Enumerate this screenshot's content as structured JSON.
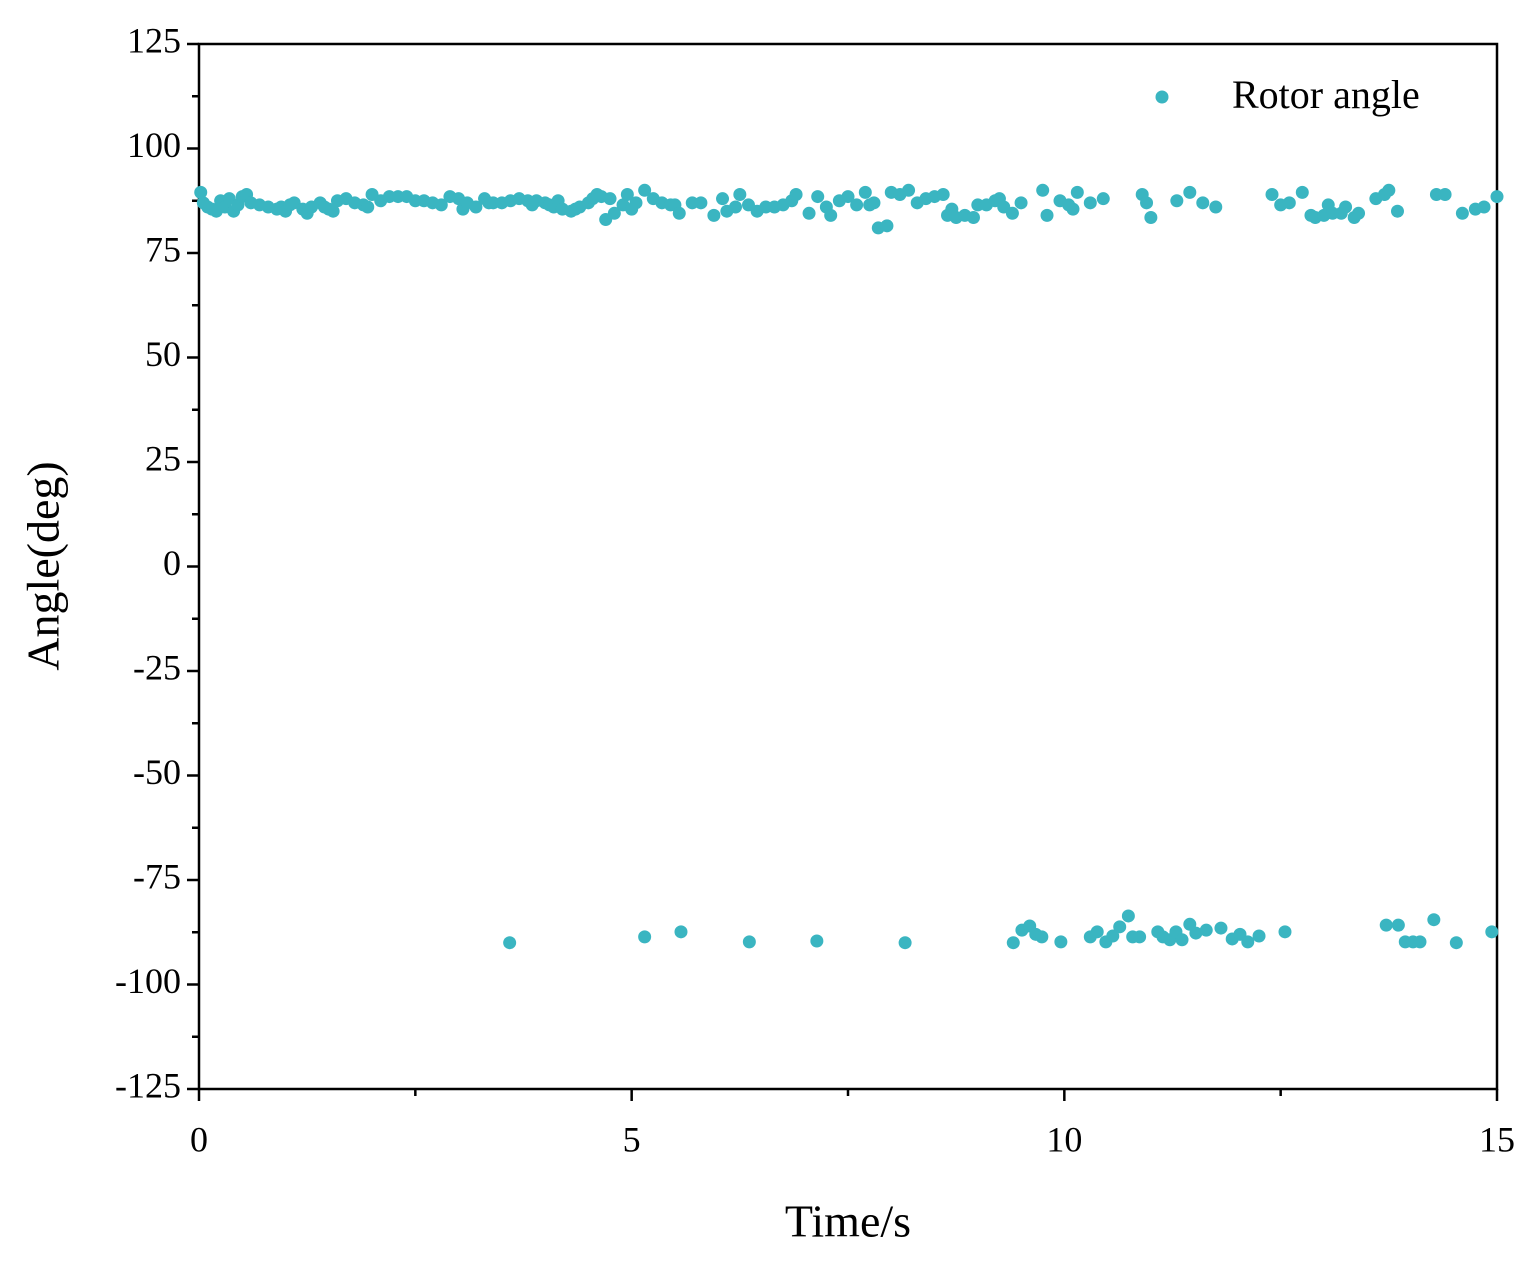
{
  "chart_data": {
    "type": "scatter",
    "xlabel": "Time/s",
    "ylabel": "Angle(deg)",
    "xlim": [
      0,
      15
    ],
    "xticks": [
      0,
      5,
      10,
      15
    ],
    "ylim": [
      -125,
      125
    ],
    "yticks": [
      -125,
      -100,
      -75,
      -50,
      -25,
      0,
      25,
      50,
      75,
      100,
      125
    ],
    "legend": "upper right",
    "series": [
      {
        "name": "Rotor angle",
        "color": "#3ab5c1",
        "x": [
          0.02,
          0.05,
          0.1,
          0.15,
          0.2,
          0.25,
          0.3,
          0.35,
          0.4,
          0.45,
          0.5,
          0.55,
          0.6,
          0.7,
          0.8,
          0.9,
          0.95,
          1.0,
          1.05,
          1.1,
          1.2,
          1.25,
          1.3,
          1.4,
          1.45,
          1.5,
          1.55,
          1.6,
          1.7,
          1.8,
          1.9,
          1.95,
          2.0,
          2.1,
          2.2,
          2.3,
          2.4,
          2.5,
          2.6,
          2.7,
          2.8,
          2.9,
          3.0,
          3.05,
          3.1,
          3.2,
          3.3,
          3.35,
          3.4,
          3.5,
          3.6,
          3.7,
          3.8,
          3.85,
          3.9,
          4.0,
          4.05,
          4.1,
          4.15,
          4.2,
          4.3,
          4.35,
          4.4,
          4.5,
          4.55,
          4.6,
          4.65,
          4.7,
          4.75,
          4.8,
          4.9,
          4.95,
          5.0,
          5.05,
          5.15,
          5.25,
          5.35,
          5.45,
          5.5,
          5.55,
          5.7,
          5.8,
          5.95,
          6.05,
          6.1,
          6.2,
          6.25,
          6.35,
          6.45,
          6.55,
          6.65,
          6.75,
          6.85,
          6.9,
          7.05,
          7.15,
          7.25,
          7.3,
          7.4,
          7.5,
          7.6,
          7.7,
          7.75,
          7.8,
          7.85,
          7.95,
          8.0,
          8.1,
          8.2,
          8.3,
          8.4,
          8.5,
          8.6,
          8.65,
          8.7,
          8.75,
          8.85,
          8.95,
          9.0,
          9.1,
          9.2,
          9.25,
          9.3,
          9.4,
          9.5,
          9.75,
          9.8,
          9.95,
          10.05,
          10.1,
          10.15,
          10.3,
          10.45,
          10.9,
          10.95,
          11.0,
          11.3,
          11.45,
          11.6,
          11.75,
          12.4,
          12.5,
          12.6,
          12.75,
          12.85,
          12.9,
          13.0,
          13.05,
          13.1,
          13.2,
          13.25,
          13.35,
          13.4,
          13.6,
          13.7,
          13.75,
          13.85,
          14.3,
          14.4,
          14.6,
          14.75,
          14.85,
          15.0,
          3.59,
          5.15,
          5.57,
          6.36,
          7.14,
          8.16,
          9.41,
          9.51,
          9.6,
          9.67,
          9.74,
          9.96,
          10.3,
          10.38,
          10.48,
          10.56,
          10.64,
          10.74,
          10.79,
          10.87,
          11.08,
          11.14,
          11.22,
          11.29,
          11.36,
          11.45,
          11.52,
          11.64,
          11.81,
          11.94,
          12.03,
          12.12,
          12.25,
          12.55,
          13.72,
          13.86,
          13.94,
          14.03,
          14.11,
          14.27,
          14.53,
          14.94
        ],
        "values": [
          89.5,
          87,
          86,
          85.5,
          85,
          87.5,
          86,
          88,
          85,
          86.5,
          88.5,
          89,
          87,
          86.5,
          86,
          85.5,
          86,
          85,
          86.5,
          87,
          85.5,
          84.5,
          86,
          87,
          86,
          85.5,
          85,
          87.5,
          88,
          87,
          86.5,
          86,
          89,
          87.5,
          88.5,
          88.5,
          88.5,
          87.5,
          87.5,
          87,
          86.5,
          88.5,
          88,
          85.5,
          87,
          86,
          88,
          87,
          87,
          87,
          87.5,
          88,
          87.5,
          86.5,
          87.5,
          87,
          86.5,
          86,
          87.5,
          85.5,
          85,
          85.5,
          86,
          87,
          88,
          89,
          88.5,
          83,
          88,
          84.5,
          86.5,
          89,
          85.5,
          87,
          90,
          88,
          87,
          86.5,
          86.5,
          84.5,
          87,
          87,
          84,
          88,
          85,
          86,
          89,
          86.5,
          85,
          86,
          86,
          86.5,
          87.5,
          89,
          84.5,
          88.5,
          86,
          84,
          87.5,
          88.5,
          86.5,
          89.5,
          86.5,
          87,
          81,
          81.5,
          89.5,
          89,
          90,
          87,
          88,
          88.5,
          89,
          84,
          85.5,
          83.5,
          84,
          83.5,
          86.5,
          86.5,
          87.5,
          88,
          86,
          84.5,
          87,
          90,
          84,
          87.5,
          86.5,
          85.5,
          89.5,
          87,
          88,
          89,
          87,
          83.5,
          87.5,
          89.5,
          87,
          86,
          89,
          86.5,
          87,
          89.5,
          84,
          83.5,
          84,
          86.5,
          84.5,
          84.5,
          86,
          83.5,
          84.5,
          88,
          89,
          90,
          85,
          89,
          89,
          84.5,
          85.5,
          86,
          88.5,
          -90,
          -88.6,
          -87.4,
          -89.8,
          -89.6,
          -90,
          -90,
          -87,
          -86,
          -88,
          -88.6,
          -89.8,
          -88.6,
          -87.4,
          -89.8,
          -88.4,
          -86.2,
          -83.6,
          -88.6,
          -88.6,
          -87.4,
          -88.6,
          -89.3,
          -87.4,
          -89.3,
          -85.6,
          -87.7,
          -87,
          -86.5,
          -89.1,
          -88,
          -89.8,
          -88.4,
          -87.4,
          -85.8,
          -85.8,
          -89.8,
          -89.8,
          -89.8,
          -84.5,
          -90,
          -87.4
        ]
      }
    ]
  }
}
